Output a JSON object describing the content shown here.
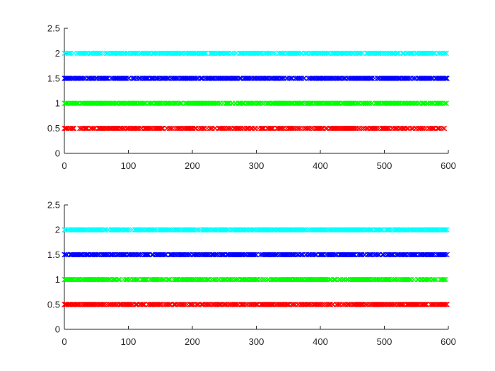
{
  "chart_data": [
    {
      "type": "scatter",
      "marker": "x",
      "title": "",
      "xlabel": "",
      "ylabel": "",
      "xlim": [
        0,
        600
      ],
      "ylim": [
        0,
        2.5
      ],
      "xticks": [
        "0",
        "100",
        "200",
        "300",
        "400",
        "500",
        "600"
      ],
      "yticks": [
        "0",
        "0.5",
        "1",
        "1.5",
        "2",
        "2.5"
      ],
      "grid": false,
      "legend": "none",
      "series": [
        {
          "y": 0.5,
          "color": "#ff0000",
          "x_range": [
            0,
            594
          ],
          "density": 0.62,
          "gaps": [
            [
              16,
              24
            ]
          ],
          "seed": 11
        },
        {
          "y": 1.0,
          "color": "#00ff00",
          "x_range": [
            0,
            597
          ],
          "density": 0.66,
          "gaps": [],
          "seed": 23
        },
        {
          "y": 1.5,
          "color": "#0000ff",
          "x_range": [
            0,
            598
          ],
          "density": 0.68,
          "gaps": [],
          "seed": 37
        },
        {
          "y": 2.0,
          "color": "#00ffff",
          "x_range": [
            0,
            597
          ],
          "density": 0.62,
          "gaps": [],
          "seed": 41
        }
      ]
    },
    {
      "type": "scatter",
      "marker": "x",
      "title": "",
      "xlabel": "",
      "ylabel": "",
      "xlim": [
        0,
        600
      ],
      "ylim": [
        0,
        2.5
      ],
      "xticks": [
        "0",
        "100",
        "200",
        "300",
        "400",
        "500",
        "600"
      ],
      "yticks": [
        "0",
        "0.5",
        "1",
        "1.5",
        "2",
        "2.5"
      ],
      "grid": false,
      "legend": "none",
      "series": [
        {
          "y": 0.5,
          "color": "#ff0000",
          "x_range": [
            0,
            598
          ],
          "density": 0.66,
          "gaps": [],
          "seed": 53
        },
        {
          "y": 1.0,
          "color": "#00ff00",
          "x_range": [
            0,
            596
          ],
          "density": 0.62,
          "gaps": [],
          "seed": 67
        },
        {
          "y": 1.5,
          "color": "#0000ff",
          "x_range": [
            0,
            598
          ],
          "density": 0.68,
          "gaps": [],
          "seed": 71
        },
        {
          "y": 2.0,
          "color": "#00ffff",
          "x_range": [
            0,
            598
          ],
          "density": 0.7,
          "gaps": [],
          "seed": 89
        }
      ]
    }
  ]
}
